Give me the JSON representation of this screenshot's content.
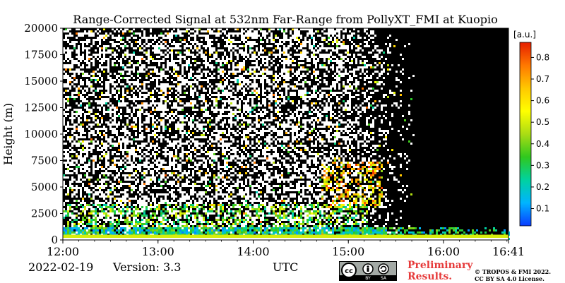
{
  "chart_data": {
    "type": "heatmap",
    "title": "Range-Corrected Signal at 532nm Far-Range from PollyXT_FMI at Kuopio",
    "xlabel": "UTC",
    "ylabel": "Height (m)",
    "x_ticks": [
      "12:00",
      "13:00",
      "14:00",
      "15:00",
      "16:00",
      "16:41"
    ],
    "x_tick_hours": [
      0,
      1,
      2,
      3,
      4,
      4.683
    ],
    "xlim_hours": [
      0,
      4.683
    ],
    "y_ticks": [
      0,
      2500,
      5000,
      7500,
      10000,
      12500,
      15000,
      17500,
      20000
    ],
    "ylim": [
      0,
      20000
    ],
    "colorbar": {
      "unit": "[a.u.]",
      "ticks": [
        0.1,
        0.2,
        0.3,
        0.4,
        0.5,
        0.6,
        0.7,
        0.8
      ],
      "range": [
        0.02,
        0.87
      ],
      "colormap": [
        "#0a3cff",
        "#00b4ff",
        "#00d2a0",
        "#30c81e",
        "#aadc14",
        "#ffff00",
        "#ffc800",
        "#ff7800",
        "#e61e00"
      ]
    },
    "noise_description_regions": [
      {
        "from_hour": 0,
        "to_hour": 3.1,
        "noisy_above_m": 1500
      },
      {
        "from_hour": 3.1,
        "to_hour": 4.683,
        "signal_below_m": 1000
      }
    ],
    "features": [
      {
        "label": "aerosol layer",
        "from_hour": 0,
        "to_hour": 4.683,
        "height_m": [
          0,
          1200
        ],
        "value": 0.2
      },
      {
        "label": "near-ground saturation",
        "from_hour": 0,
        "to_hour": 4.683,
        "height_m": [
          0,
          500
        ],
        "value": 0.6
      },
      {
        "label": "cloud streak",
        "from_hour": 2.7,
        "to_hour": 3.3,
        "height_m": [
          3000,
          7500
        ],
        "value": 0.75
      }
    ]
  },
  "footer": {
    "date": "2022-02-19",
    "version": "Version: 3.3",
    "utc_label": "UTC",
    "preliminary_line1": "Preliminary",
    "preliminary_line2": "Results.",
    "copyright_line1": "© TROPOS & FMI 2022.",
    "copyright_line2": "CC BY SA 4.0 License.",
    "license_badge": [
      "cc",
      "BY",
      "SA"
    ]
  }
}
